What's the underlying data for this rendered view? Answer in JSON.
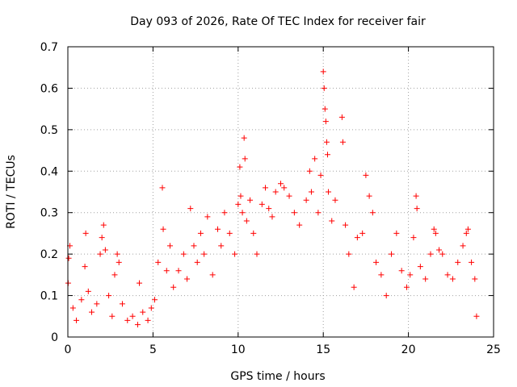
{
  "chart_data": {
    "type": "scatter",
    "title": "Day 093 of 2026, Rate Of TEC Index for receiver fair",
    "xlabel": "GPS time / hours",
    "ylabel": "ROTI / TECUs",
    "xlim": [
      0,
      25
    ],
    "ylim": [
      0,
      0.7
    ],
    "x_ticks": [
      0,
      5,
      10,
      15,
      20,
      25
    ],
    "y_ticks": [
      0,
      0.1,
      0.2,
      0.3,
      0.4,
      0.5,
      0.6,
      0.7
    ],
    "grid": true,
    "marker": "+",
    "color": "#ff0000",
    "series": [
      {
        "points": [
          [
            0.02,
            0.13
          ],
          [
            0.05,
            0.19
          ],
          [
            0.12,
            0.22
          ],
          [
            0.3,
            0.07
          ],
          [
            0.5,
            0.04
          ],
          [
            0.8,
            0.09
          ],
          [
            1.0,
            0.17
          ],
          [
            1.05,
            0.25
          ],
          [
            1.2,
            0.11
          ],
          [
            1.4,
            0.06
          ],
          [
            1.7,
            0.08
          ],
          [
            1.9,
            0.2
          ],
          [
            2.0,
            0.24
          ],
          [
            2.1,
            0.27
          ],
          [
            2.2,
            0.21
          ],
          [
            2.4,
            0.1
          ],
          [
            2.6,
            0.05
          ],
          [
            2.75,
            0.15
          ],
          [
            2.9,
            0.2
          ],
          [
            3.0,
            0.18
          ],
          [
            3.2,
            0.08
          ],
          [
            3.5,
            0.04
          ],
          [
            3.8,
            0.05
          ],
          [
            4.1,
            0.03
          ],
          [
            4.2,
            0.13
          ],
          [
            4.4,
            0.06
          ],
          [
            4.7,
            0.04
          ],
          [
            4.9,
            0.07
          ],
          [
            5.1,
            0.09
          ],
          [
            5.3,
            0.18
          ],
          [
            5.55,
            0.36
          ],
          [
            5.6,
            0.26
          ],
          [
            5.8,
            0.16
          ],
          [
            6.0,
            0.22
          ],
          [
            6.2,
            0.12
          ],
          [
            6.5,
            0.16
          ],
          [
            6.8,
            0.2
          ],
          [
            7.0,
            0.14
          ],
          [
            7.2,
            0.31
          ],
          [
            7.4,
            0.22
          ],
          [
            7.6,
            0.18
          ],
          [
            7.8,
            0.25
          ],
          [
            8.0,
            0.2
          ],
          [
            8.2,
            0.29
          ],
          [
            8.5,
            0.15
          ],
          [
            8.8,
            0.26
          ],
          [
            9.0,
            0.22
          ],
          [
            9.2,
            0.3
          ],
          [
            9.5,
            0.25
          ],
          [
            9.8,
            0.2
          ],
          [
            10.0,
            0.32
          ],
          [
            10.1,
            0.41
          ],
          [
            10.15,
            0.34
          ],
          [
            10.25,
            0.3
          ],
          [
            10.35,
            0.48
          ],
          [
            10.4,
            0.43
          ],
          [
            10.5,
            0.28
          ],
          [
            10.7,
            0.33
          ],
          [
            10.9,
            0.25
          ],
          [
            11.1,
            0.2
          ],
          [
            11.4,
            0.32
          ],
          [
            11.6,
            0.36
          ],
          [
            11.8,
            0.31
          ],
          [
            12.0,
            0.29
          ],
          [
            12.2,
            0.35
          ],
          [
            12.5,
            0.37
          ],
          [
            12.7,
            0.36
          ],
          [
            13.0,
            0.34
          ],
          [
            13.3,
            0.3
          ],
          [
            13.6,
            0.27
          ],
          [
            14.0,
            0.33
          ],
          [
            14.2,
            0.4
          ],
          [
            14.3,
            0.35
          ],
          [
            14.5,
            0.43
          ],
          [
            14.7,
            0.3
          ],
          [
            14.85,
            0.39
          ],
          [
            15.0,
            0.64
          ],
          [
            15.05,
            0.6
          ],
          [
            15.1,
            0.55
          ],
          [
            15.15,
            0.52
          ],
          [
            15.2,
            0.47
          ],
          [
            15.25,
            0.44
          ],
          [
            15.3,
            0.35
          ],
          [
            15.5,
            0.28
          ],
          [
            15.7,
            0.33
          ],
          [
            16.1,
            0.53
          ],
          [
            16.15,
            0.47
          ],
          [
            16.3,
            0.27
          ],
          [
            16.5,
            0.2
          ],
          [
            16.8,
            0.12
          ],
          [
            17.0,
            0.24
          ],
          [
            17.3,
            0.25
          ],
          [
            17.5,
            0.39
          ],
          [
            17.7,
            0.34
          ],
          [
            17.9,
            0.3
          ],
          [
            18.1,
            0.18
          ],
          [
            18.4,
            0.15
          ],
          [
            18.7,
            0.1
          ],
          [
            19.0,
            0.2
          ],
          [
            19.3,
            0.25
          ],
          [
            19.6,
            0.16
          ],
          [
            19.9,
            0.12
          ],
          [
            20.1,
            0.15
          ],
          [
            20.3,
            0.24
          ],
          [
            20.45,
            0.34
          ],
          [
            20.5,
            0.31
          ],
          [
            20.7,
            0.17
          ],
          [
            21.0,
            0.14
          ],
          [
            21.3,
            0.2
          ],
          [
            21.5,
            0.26
          ],
          [
            21.6,
            0.25
          ],
          [
            21.8,
            0.21
          ],
          [
            22.0,
            0.2
          ],
          [
            22.3,
            0.15
          ],
          [
            22.6,
            0.14
          ],
          [
            22.9,
            0.18
          ],
          [
            23.2,
            0.22
          ],
          [
            23.4,
            0.25
          ],
          [
            23.5,
            0.26
          ],
          [
            23.7,
            0.18
          ],
          [
            23.9,
            0.14
          ],
          [
            24.0,
            0.05
          ]
        ]
      }
    ]
  }
}
